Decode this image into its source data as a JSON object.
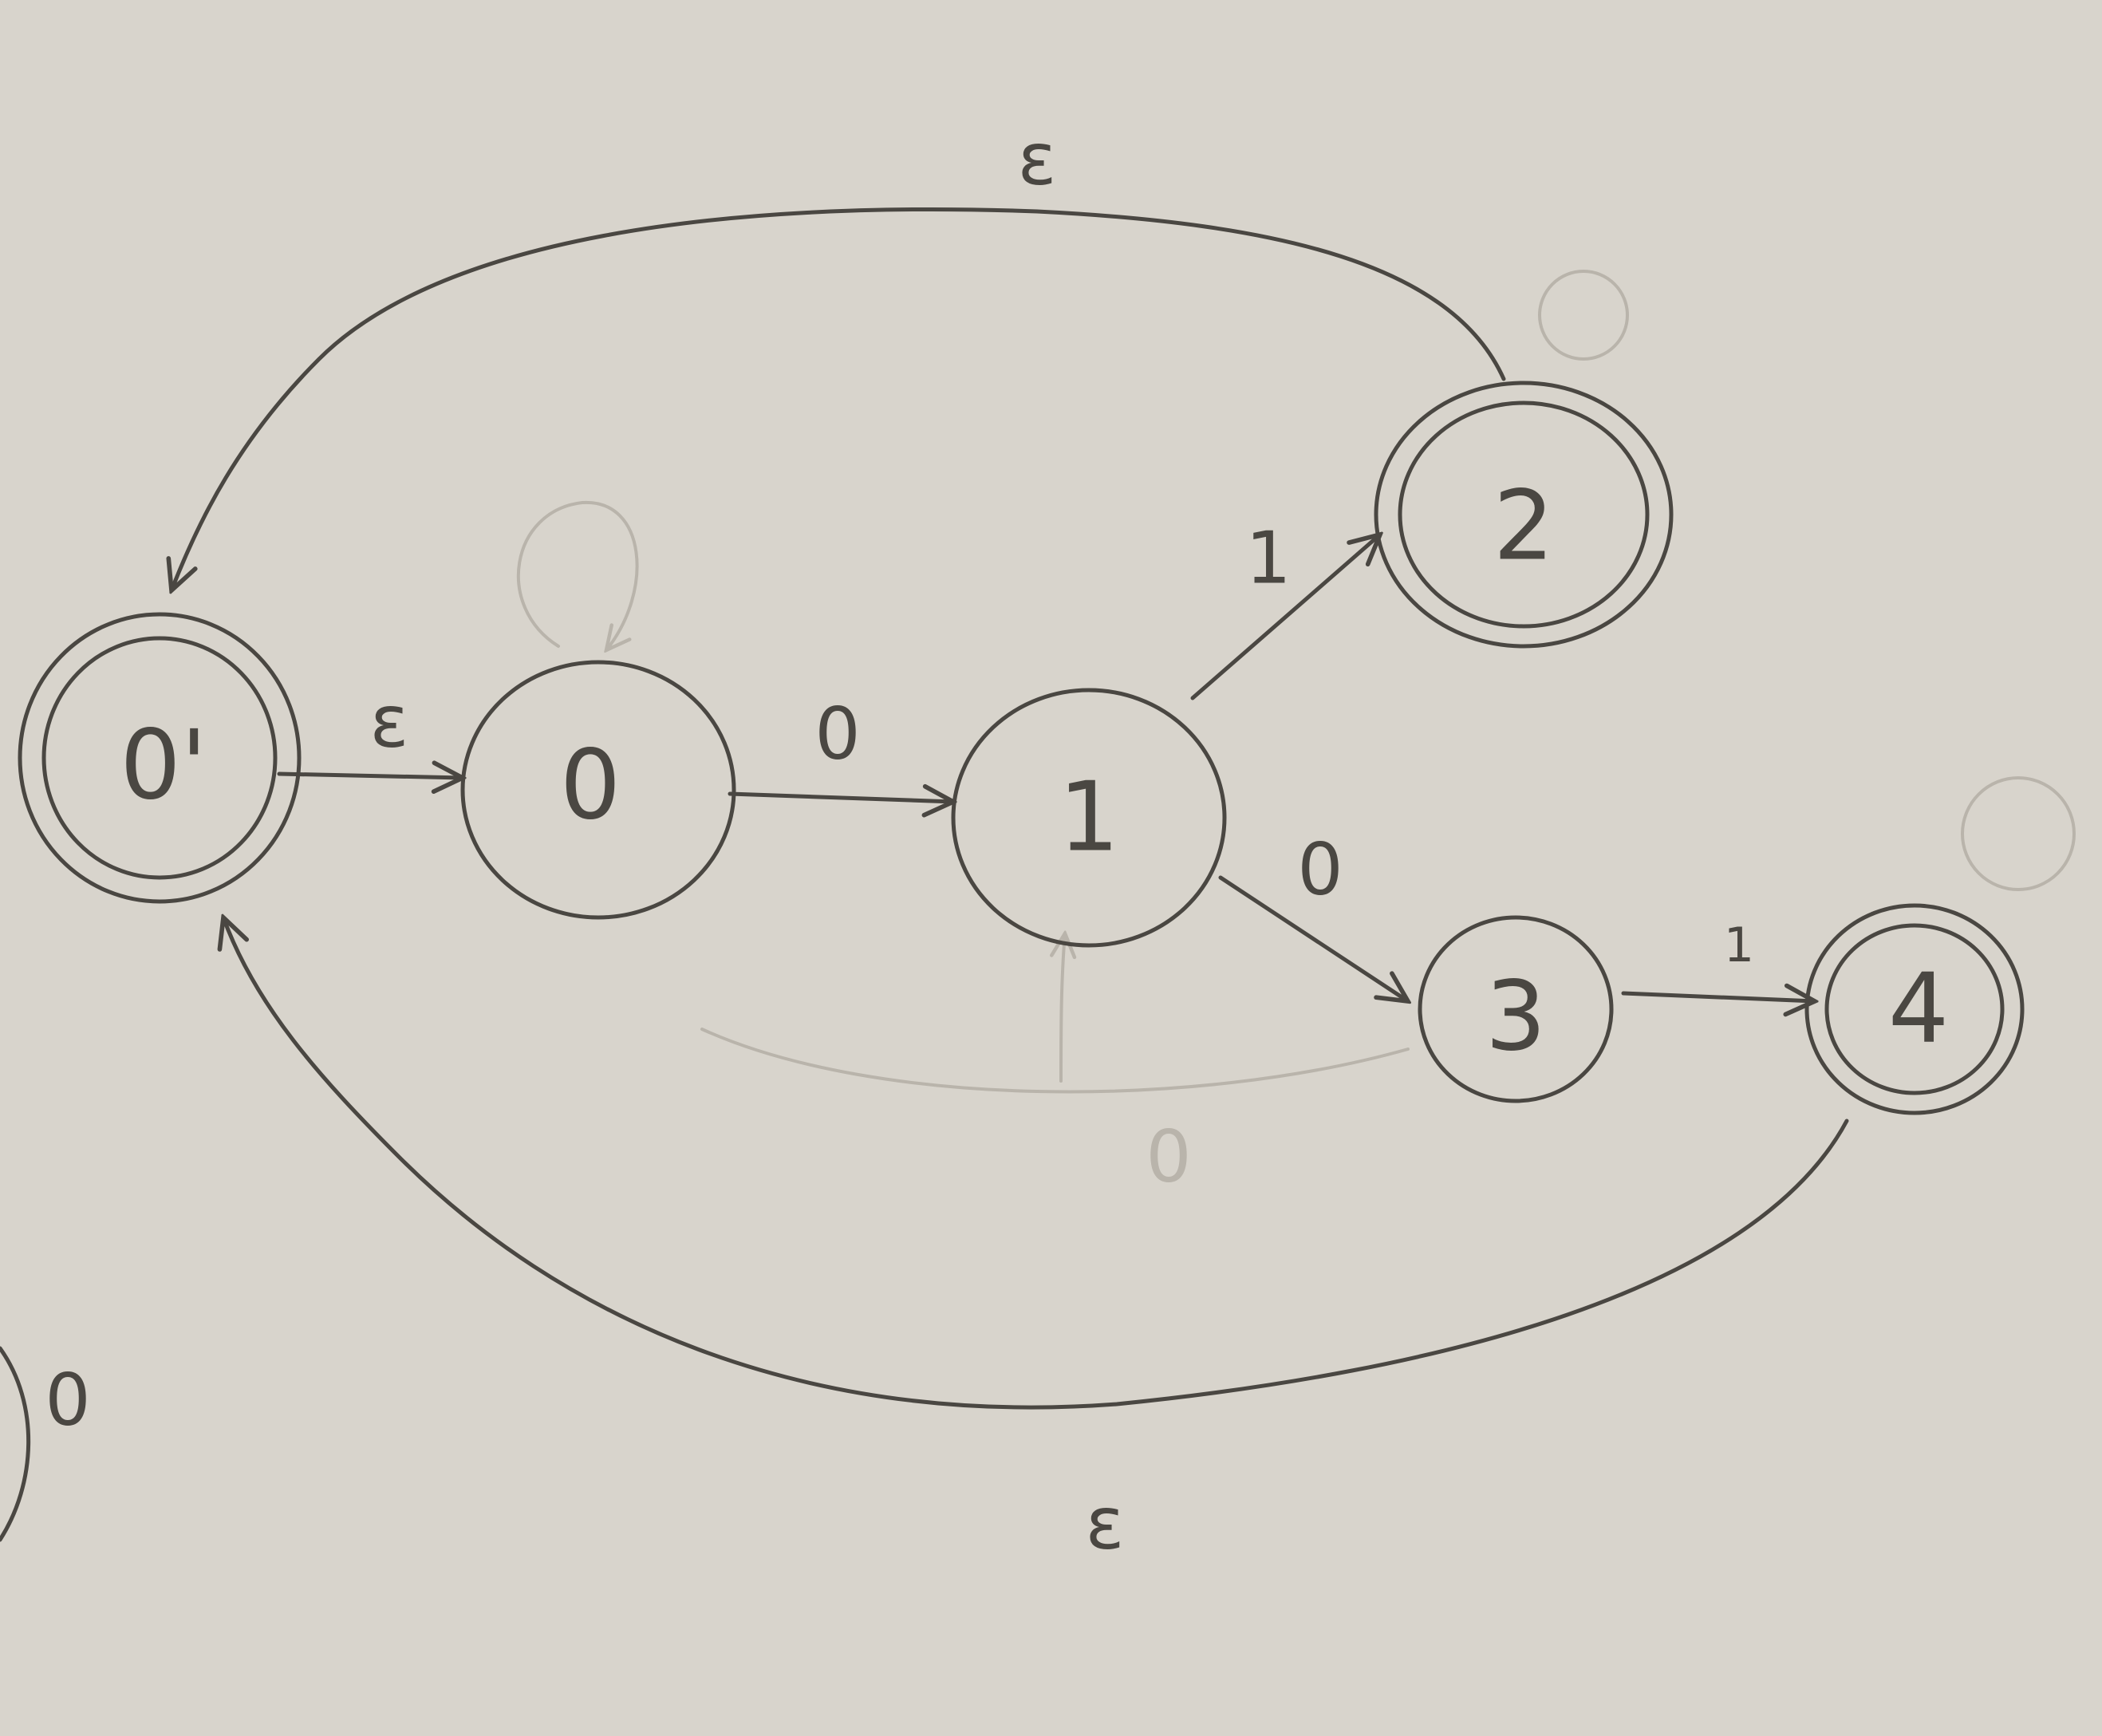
{
  "states": [
    {
      "id": "q0p",
      "label": "0'",
      "accepting": true
    },
    {
      "id": "q0",
      "label": "0",
      "accepting": false
    },
    {
      "id": "q1",
      "label": "1",
      "accepting": false
    },
    {
      "id": "q2",
      "label": "2",
      "accepting": true
    },
    {
      "id": "q3",
      "label": "3",
      "accepting": false
    },
    {
      "id": "q4",
      "label": "4",
      "accepting": true
    }
  ],
  "edges": [
    {
      "from": "0'",
      "to": "0",
      "label": "ε"
    },
    {
      "from": "0",
      "to": "1",
      "label": "0"
    },
    {
      "from": "1",
      "to": "2",
      "label": "1"
    },
    {
      "from": "1",
      "to": "3",
      "label": "0"
    },
    {
      "from": "3",
      "to": "4",
      "label": "1"
    },
    {
      "from": "2",
      "to": "0'",
      "label": "ε"
    },
    {
      "from": "4",
      "to": "0'",
      "label": "ε"
    }
  ],
  "faint_marks": {
    "erased_edge_label": "0"
  },
  "stray_marks": {
    "margin_mark": "0"
  },
  "colors": {
    "paper": "#d8d4cc",
    "pencil": "#4a4742",
    "erased": "#b9b4ab"
  }
}
